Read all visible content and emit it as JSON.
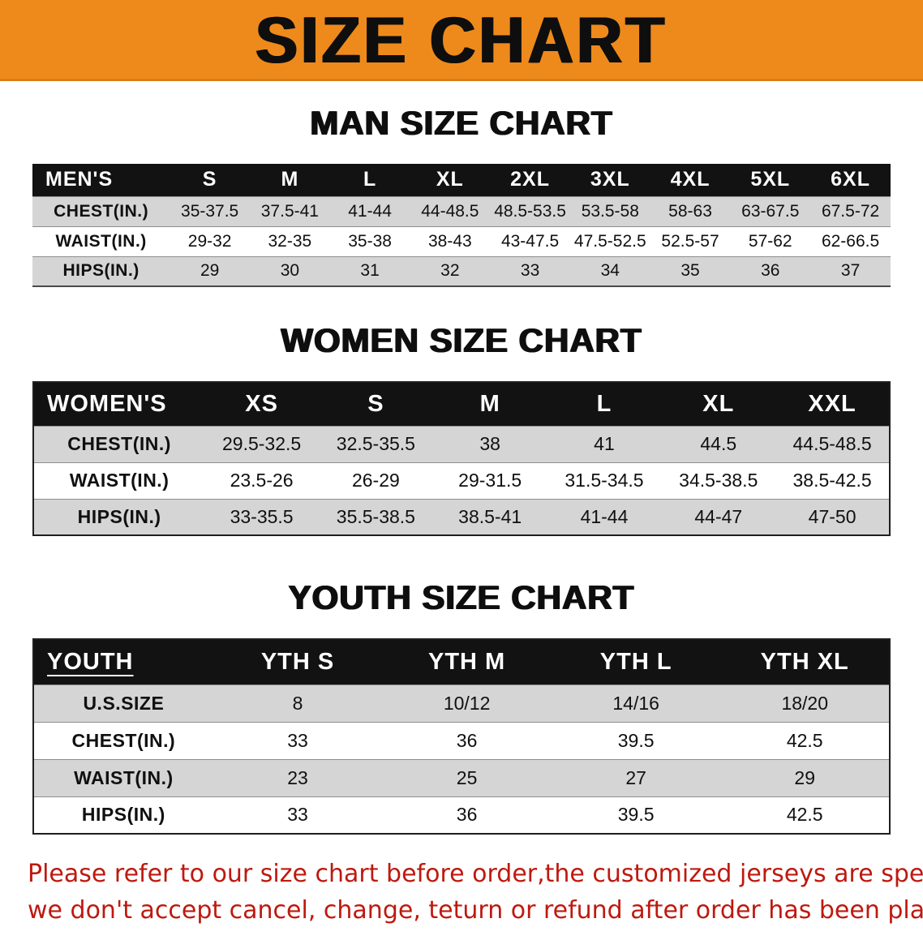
{
  "colors": {
    "banner-orange": "#EE8A1C",
    "header-black": "#121212",
    "row-gray": "#D5D5D5",
    "disclaimer-red": "#BE190F"
  },
  "banner": {
    "title": "SIZE CHART"
  },
  "men": {
    "heading": "MAN SIZE CHART",
    "header": [
      "MEN'S",
      "S",
      "M",
      "L",
      "XL",
      "2XL",
      "3XL",
      "4XL",
      "5XL",
      "6XL"
    ],
    "rows": [
      {
        "label": "CHEST(IN.)",
        "values": [
          "35-37.5",
          "37.5-41",
          "41-44",
          "44-48.5",
          "48.5-53.5",
          "53.5-58",
          "58-63",
          "63-67.5",
          "67.5-72"
        ]
      },
      {
        "label": "WAIST(IN.)",
        "values": [
          "29-32",
          "32-35",
          "35-38",
          "38-43",
          "43-47.5",
          "47.5-52.5",
          "52.5-57",
          "57-62",
          "62-66.5"
        ]
      },
      {
        "label": "HIPS(IN.)",
        "values": [
          "29",
          "30",
          "31",
          "32",
          "33",
          "34",
          "35",
          "36",
          "37"
        ]
      }
    ]
  },
  "women": {
    "heading": "WOMEN SIZE CHART",
    "header": [
      "WOMEN'S",
      "XS",
      "S",
      "M",
      "L",
      "XL",
      "XXL"
    ],
    "rows": [
      {
        "label": "CHEST(IN.)",
        "values": [
          "29.5-32.5",
          "32.5-35.5",
          "38",
          "41",
          "44.5",
          "44.5-48.5"
        ]
      },
      {
        "label": "WAIST(IN.)",
        "values": [
          "23.5-26",
          "26-29",
          "29-31.5",
          "31.5-34.5",
          "34.5-38.5",
          "38.5-42.5"
        ]
      },
      {
        "label": "HIPS(IN.)",
        "values": [
          "33-35.5",
          "35.5-38.5",
          "38.5-41",
          "41-44",
          "44-47",
          "47-50"
        ]
      }
    ]
  },
  "youth": {
    "heading": "YOUTH SIZE CHART",
    "header": [
      "YOUTH",
      "YTH S",
      "YTH M",
      "YTH L",
      "YTH XL"
    ],
    "rows": [
      {
        "label": "U.S.SIZE",
        "values": [
          "8",
          "10/12",
          "14/16",
          "18/20"
        ]
      },
      {
        "label": "CHEST(IN.)",
        "values": [
          "33",
          "36",
          "39.5",
          "42.5"
        ]
      },
      {
        "label": "WAIST(IN.)",
        "values": [
          "23",
          "25",
          "27",
          "29"
        ]
      },
      {
        "label": "HIPS(IN.)",
        "values": [
          "33",
          "36",
          "39.5",
          "42.5"
        ]
      }
    ]
  },
  "disclaimer": {
    "line1": "Please refer to our size chart before order,the customized jerseys are special products,",
    "line2": "we don't accept cancel, change, teturn or refund after order has been placed!"
  }
}
